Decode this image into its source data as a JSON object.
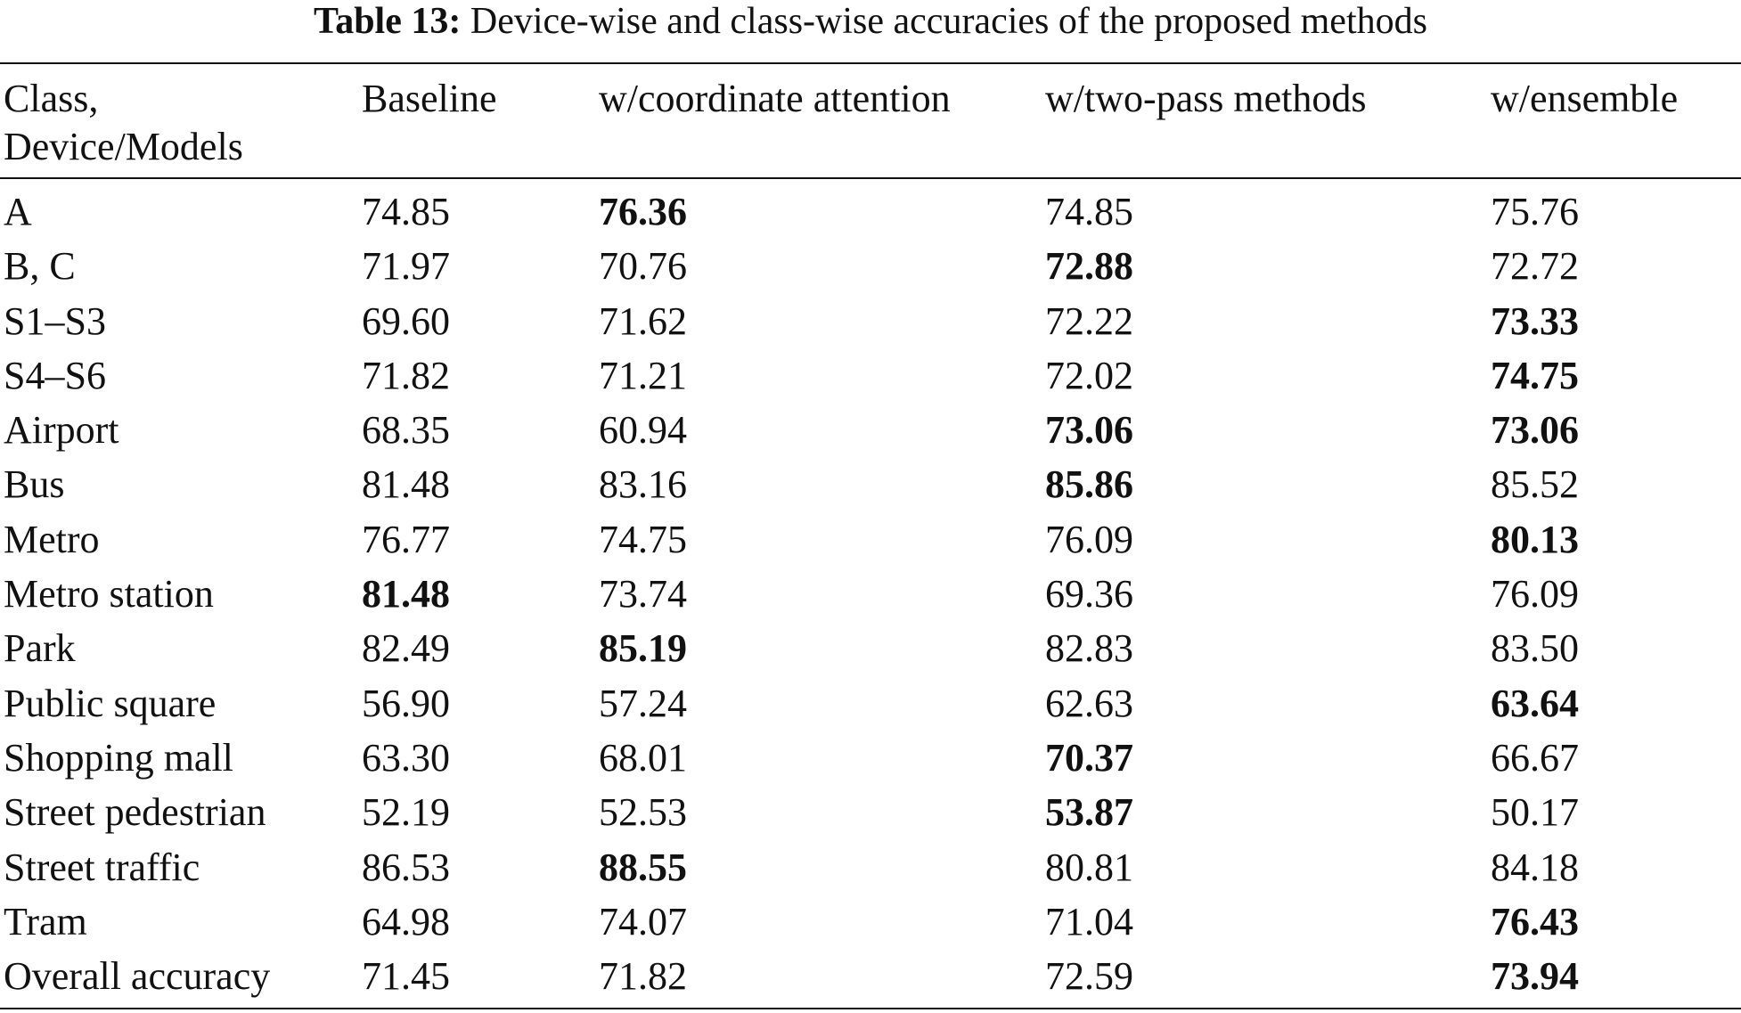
{
  "caption": {
    "label": "Table 13:",
    "text": "Device-wise and class-wise accuracies of the proposed methods"
  },
  "header": {
    "col0_line1": "Class,",
    "col0_line2": "Device/Models",
    "col1": "Baseline",
    "col2": "w/coordinate attention",
    "col3": "w/two-pass methods",
    "col4": "w/ensemble"
  },
  "rows": [
    {
      "label": "A",
      "values": [
        "74.85",
        "76.36",
        "74.85",
        "75.76"
      ],
      "bold": [
        false,
        true,
        false,
        false
      ]
    },
    {
      "label": "B, C",
      "values": [
        "71.97",
        "70.76",
        "72.88",
        "72.72"
      ],
      "bold": [
        false,
        false,
        true,
        false
      ]
    },
    {
      "label": "S1–S3",
      "values": [
        "69.60",
        "71.62",
        "72.22",
        "73.33"
      ],
      "bold": [
        false,
        false,
        false,
        true
      ]
    },
    {
      "label": "S4–S6",
      "values": [
        "71.82",
        "71.21",
        "72.02",
        "74.75"
      ],
      "bold": [
        false,
        false,
        false,
        true
      ]
    },
    {
      "label": "Airport",
      "values": [
        "68.35",
        "60.94",
        "73.06",
        "73.06"
      ],
      "bold": [
        false,
        false,
        true,
        true
      ]
    },
    {
      "label": "Bus",
      "values": [
        "81.48",
        "83.16",
        "85.86",
        "85.52"
      ],
      "bold": [
        false,
        false,
        true,
        false
      ]
    },
    {
      "label": "Metro",
      "values": [
        "76.77",
        "74.75",
        "76.09",
        "80.13"
      ],
      "bold": [
        false,
        false,
        false,
        true
      ]
    },
    {
      "label": "Metro station",
      "values": [
        "81.48",
        "73.74",
        "69.36",
        "76.09"
      ],
      "bold": [
        true,
        false,
        false,
        false
      ]
    },
    {
      "label": "Park",
      "values": [
        "82.49",
        "85.19",
        "82.83",
        "83.50"
      ],
      "bold": [
        false,
        true,
        false,
        false
      ]
    },
    {
      "label": "Public square",
      "values": [
        "56.90",
        "57.24",
        "62.63",
        "63.64"
      ],
      "bold": [
        false,
        false,
        false,
        true
      ]
    },
    {
      "label": "Shopping mall",
      "values": [
        "63.30",
        "68.01",
        "70.37",
        "66.67"
      ],
      "bold": [
        false,
        false,
        true,
        false
      ]
    },
    {
      "label": "Street pedestrian",
      "values": [
        "52.19",
        "52.53",
        "53.87",
        "50.17"
      ],
      "bold": [
        false,
        false,
        true,
        false
      ]
    },
    {
      "label": "Street traffic",
      "values": [
        "86.53",
        "88.55",
        "80.81",
        "84.18"
      ],
      "bold": [
        false,
        true,
        false,
        false
      ]
    },
    {
      "label": "Tram",
      "values": [
        "64.98",
        "74.07",
        "71.04",
        "76.43"
      ],
      "bold": [
        false,
        false,
        false,
        true
      ]
    },
    {
      "label": "Overall accuracy",
      "values": [
        "71.45",
        "71.82",
        "72.59",
        "73.94"
      ],
      "bold": [
        false,
        false,
        false,
        true
      ]
    }
  ]
}
